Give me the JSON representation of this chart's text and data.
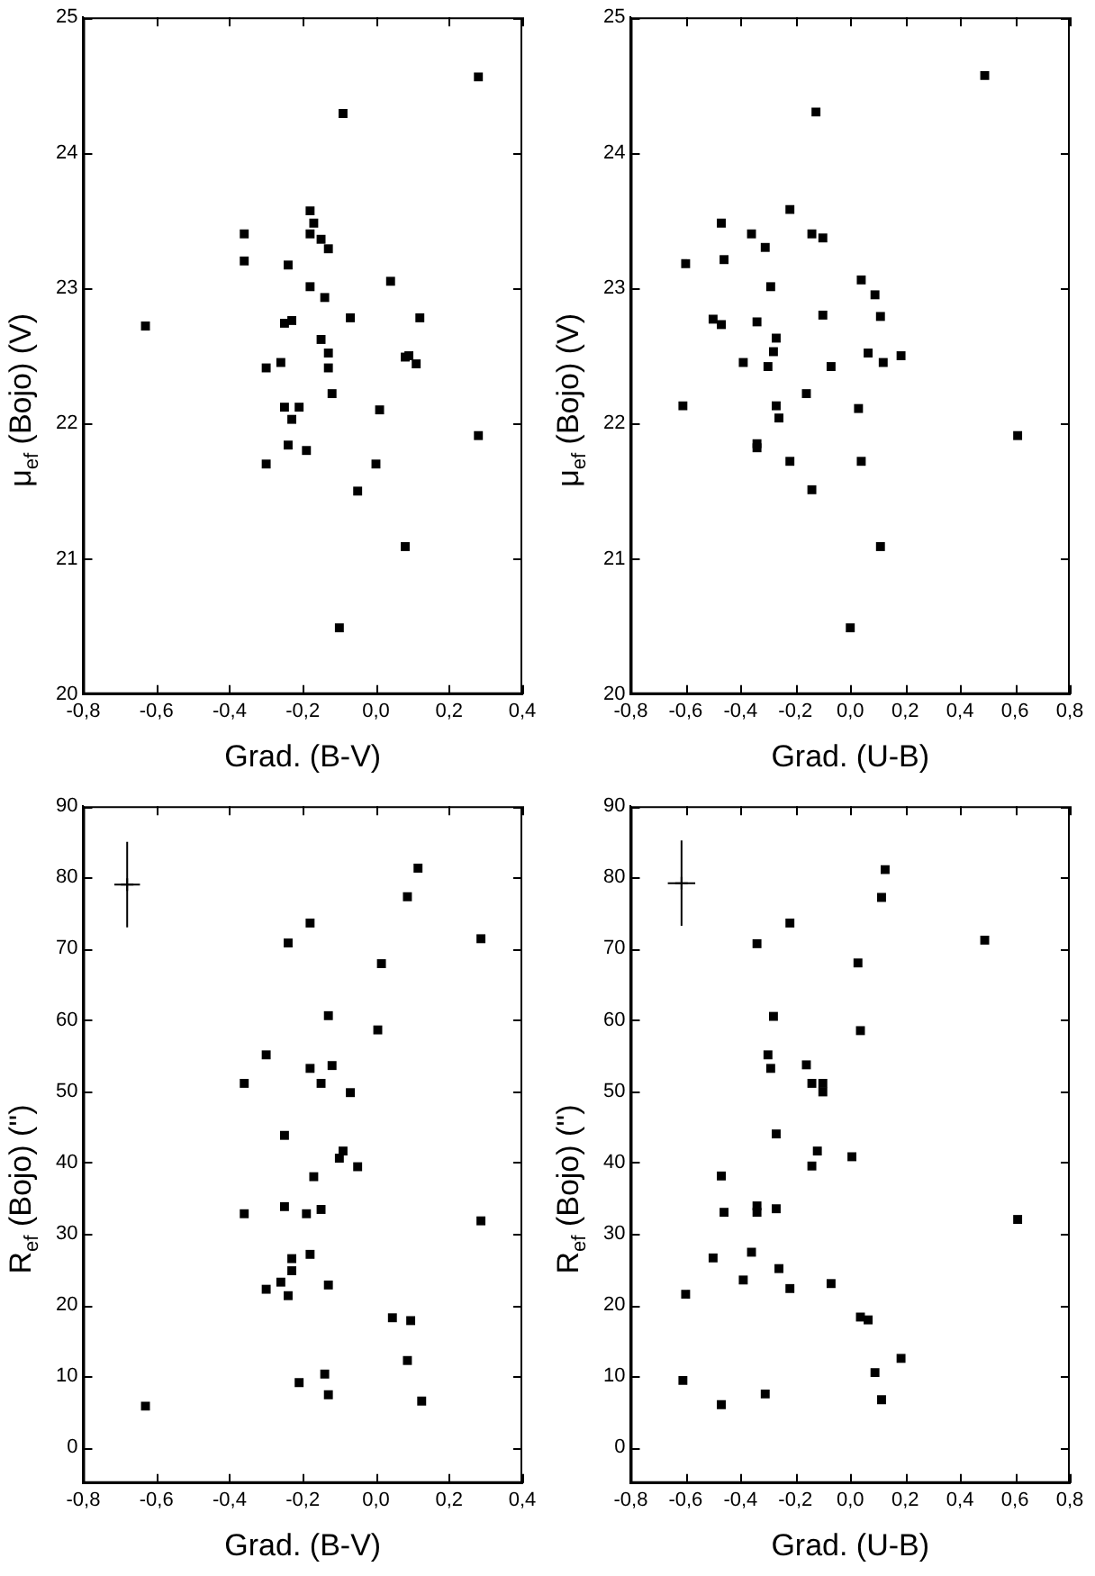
{
  "chart_data": [
    {
      "type": "scatter",
      "xlabel": "Grad. (B-V)",
      "ylabel": "μ$_{ef}$ (Bojo) (V)",
      "marker": "square",
      "xlim": [
        -0.8,
        0.4
      ],
      "ylim": [
        20,
        25
      ],
      "xticks": [
        {
          "value": -0.8,
          "label": "-0,8"
        },
        {
          "value": -0.6,
          "label": "-0,6"
        },
        {
          "value": -0.4,
          "label": "-0,4"
        },
        {
          "value": -0.2,
          "label": "-0,2"
        },
        {
          "value": 0,
          "label": "0,0"
        },
        {
          "value": 0.2,
          "label": "0,2"
        },
        {
          "value": 0.4,
          "label": "0,4"
        }
      ],
      "yticks": [
        20,
        21,
        22,
        23,
        24,
        25
      ],
      "series": [
        {
          "color": "#000000",
          "x": [
            0.28,
            -0.09,
            -0.18,
            -0.17,
            -0.36,
            -0.18,
            -0.15,
            -0.13,
            -0.36,
            -0.24,
            0.04,
            -0.18,
            -0.14,
            -0.63,
            -0.25,
            -0.23,
            -0.07,
            0.12,
            -0.15,
            -0.13,
            0.08,
            0.09,
            0.11,
            -0.3,
            -0.26,
            -0.13,
            -0.12,
            -0.25,
            -0.21,
            -0.23,
            0.01,
            -0.24,
            -0.19,
            -0.3,
            0.0,
            -0.05,
            0.28,
            0.08,
            -0.1
          ],
          "values": [
            24.56,
            24.29,
            23.57,
            23.48,
            23.4,
            23.4,
            23.36,
            23.29,
            23.2,
            23.17,
            23.05,
            23.01,
            22.93,
            22.72,
            22.74,
            22.76,
            22.78,
            22.78,
            22.62,
            22.52,
            22.49,
            22.5,
            22.44,
            22.41,
            22.45,
            22.41,
            22.22,
            22.12,
            22.12,
            22.03,
            22.1,
            21.84,
            21.8,
            21.7,
            21.7,
            21.5,
            21.91,
            21.09,
            20.49
          ]
        }
      ]
    },
    {
      "type": "scatter",
      "xlabel": "Grad. (U-B)",
      "ylabel": "μ$_{ef}$ (Bojo) (V)",
      "marker": "square",
      "xlim": [
        -0.8,
        0.8
      ],
      "ylim": [
        20,
        25
      ],
      "xticks": [
        {
          "value": -0.8,
          "label": "-0,8"
        },
        {
          "value": -0.6,
          "label": "-0,6"
        },
        {
          "value": -0.4,
          "label": "-0,4"
        },
        {
          "value": -0.2,
          "label": "-0,2"
        },
        {
          "value": 0,
          "label": "0,0"
        },
        {
          "value": 0.2,
          "label": "0,2"
        },
        {
          "value": 0.4,
          "label": "0,4"
        },
        {
          "value": 0.6,
          "label": "0,6"
        },
        {
          "value": 0.8,
          "label": "0,8"
        }
      ],
      "yticks": [
        20,
        21,
        22,
        23,
        24,
        25
      ],
      "series": [
        {
          "color": "#000000",
          "x": [
            0.49,
            -0.125,
            -0.22,
            -0.47,
            -0.36,
            -0.14,
            -0.1,
            -0.31,
            -0.6,
            -0.46,
            -0.29,
            0.04,
            0.09,
            -0.5,
            -0.47,
            -0.34,
            -0.1,
            0.11,
            -0.27,
            -0.28,
            0.065,
            0.185,
            0.12,
            -0.39,
            -0.3,
            -0.07,
            -0.16,
            -0.61,
            -0.27,
            0.03,
            -0.26,
            -0.34,
            -0.34,
            -0.22,
            0.04,
            -0.14,
            0.61,
            0.11,
            0.0
          ],
          "values": [
            24.57,
            24.3,
            23.58,
            23.48,
            23.4,
            23.4,
            23.37,
            23.3,
            23.18,
            23.21,
            23.01,
            23.06,
            22.95,
            22.77,
            22.73,
            22.75,
            22.8,
            22.79,
            22.63,
            22.53,
            22.52,
            22.5,
            22.45,
            22.45,
            22.42,
            22.42,
            22.22,
            22.13,
            22.13,
            22.11,
            22.04,
            21.85,
            21.82,
            21.72,
            21.72,
            21.51,
            21.91,
            21.09,
            20.49
          ]
        }
      ]
    },
    {
      "type": "scatter",
      "xlabel": "Grad. (B-V)",
      "ylabel": "R$_{ef}$ (Bojo) ('')",
      "marker": "square",
      "xlim": [
        -0.8,
        0.4
      ],
      "ylim": [
        -5,
        90
      ],
      "xticks": [
        {
          "value": -0.8,
          "label": "-0,8"
        },
        {
          "value": -0.6,
          "label": "-0,6"
        },
        {
          "value": -0.4,
          "label": "-0,4"
        },
        {
          "value": -0.2,
          "label": "-0,2"
        },
        {
          "value": 0,
          "label": "0,0"
        },
        {
          "value": 0.2,
          "label": "0,2"
        },
        {
          "value": 0.4,
          "label": "0,4"
        }
      ],
      "yticks": [
        0,
        10,
        20,
        30,
        40,
        50,
        60,
        70,
        80,
        90
      ],
      "series": [
        {
          "color": "#000000",
          "x": [
            0.115,
            0.086,
            -0.18,
            -0.24,
            0.287,
            0.015,
            -0.13,
            0.005,
            -0.3,
            -0.18,
            -0.12,
            -0.36,
            -0.15,
            -0.07,
            -0.25,
            -0.09,
            -0.1,
            -0.05,
            -0.17,
            -0.25,
            -0.36,
            -0.19,
            -0.15,
            0.287,
            -0.18,
            -0.23,
            -0.23,
            -0.26,
            -0.3,
            -0.13,
            -0.24,
            0.045,
            0.095,
            0.086,
            -0.14,
            -0.21,
            -0.13,
            0.125,
            -0.63
          ],
          "values": [
            81.3,
            77.3,
            73.6,
            70.8,
            71.4,
            67.9,
            60.6,
            58.6,
            55.1,
            53.2,
            53.6,
            51.1,
            51.1,
            49.8,
            43.8,
            41.6,
            40.6,
            39.4,
            38.0,
            33.8,
            32.8,
            32.8,
            33.4,
            31.8,
            27.1,
            26.5,
            24.8,
            23.2,
            22.2,
            22.8,
            21.3,
            18.2,
            17.8,
            12.2,
            10.3,
            9.1,
            7.4,
            6.5,
            5.8
          ]
        },
        {
          "color": "#000000",
          "marker": "cross",
          "x": [
            -0.68
          ],
          "values": [
            79
          ],
          "errors": [
            6
          ],
          "xerrors": [
            0.035
          ]
        }
      ]
    },
    {
      "type": "scatter",
      "xlabel": "Grad. (U-B)",
      "ylabel": "R$_{ef}$ (Bojo) ('')",
      "marker": "square",
      "xlim": [
        -0.8,
        0.8
      ],
      "ylim": [
        -5,
        90
      ],
      "xticks": [
        {
          "value": -0.8,
          "label": "-0,8"
        },
        {
          "value": -0.6,
          "label": "-0,6"
        },
        {
          "value": -0.4,
          "label": "-0,4"
        },
        {
          "value": -0.2,
          "label": "-0,2"
        },
        {
          "value": 0,
          "label": "0,0"
        },
        {
          "value": 0.2,
          "label": "0,2"
        },
        {
          "value": 0.4,
          "label": "0,4"
        },
        {
          "value": 0.6,
          "label": "0,6"
        },
        {
          "value": 0.8,
          "label": "0,8"
        }
      ],
      "yticks": [
        0,
        10,
        20,
        30,
        40,
        50,
        60,
        70,
        80,
        90
      ],
      "series": [
        {
          "color": "#000000",
          "x": [
            0.127,
            0.114,
            -0.22,
            -0.34,
            0.49,
            0.028,
            -0.28,
            0.037,
            -0.3,
            -0.29,
            -0.16,
            -0.14,
            -0.1,
            -0.1,
            -0.27,
            -0.12,
            0.006,
            -0.14,
            -0.47,
            -0.34,
            -0.34,
            -0.27,
            -0.46,
            0.61,
            -0.36,
            -0.5,
            -0.26,
            -0.39,
            -0.07,
            -0.22,
            -0.6,
            0.037,
            0.065,
            0.185,
            0.09,
            -0.61,
            -0.31,
            -0.47,
            0.114
          ],
          "values": [
            81.1,
            77.2,
            73.6,
            70.7,
            71.2,
            68.0,
            60.5,
            58.5,
            55.1,
            53.2,
            53.7,
            51.1,
            51.1,
            49.9,
            44.0,
            41.6,
            40.8,
            39.5,
            38.1,
            33.9,
            33.0,
            33.5,
            33.0,
            32.0,
            27.4,
            26.6,
            25.1,
            23.5,
            23.0,
            22.3,
            21.5,
            18.3,
            17.9,
            12.5,
            10.5,
            9.4,
            7.5,
            6.0,
            6.7
          ]
        },
        {
          "color": "#000000",
          "marker": "cross",
          "x": [
            -0.615
          ],
          "values": [
            79.2
          ],
          "errors": [
            6
          ],
          "xerrors": [
            0.05
          ]
        }
      ]
    }
  ]
}
